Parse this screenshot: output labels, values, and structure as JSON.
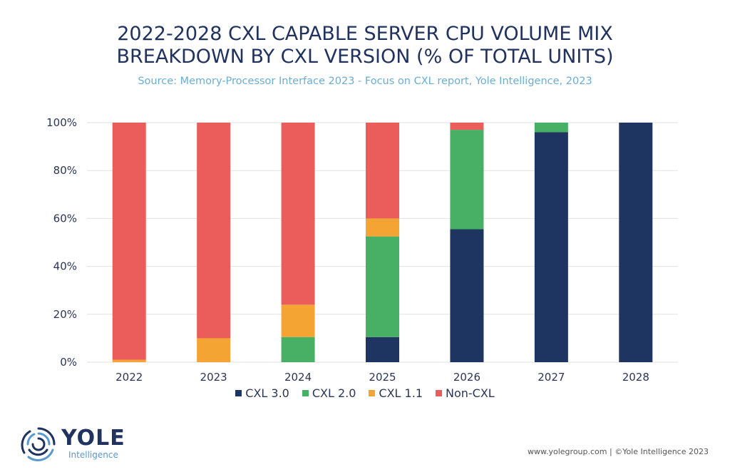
{
  "header": {
    "title_line1": "2022-2028 CXL CAPABLE SERVER CPU VOLUME MIX",
    "title_line2": "BREAKDOWN BY CXL VERSION (% OF TOTAL UNITS)",
    "subtitle": "Source: Memory-Processor Interface 2023 - Focus on CXL  report, Yole Intelligence, 2023"
  },
  "chart_data": {
    "type": "bar",
    "stacked": true,
    "title": "2022-2028 CXL CAPABLE SERVER CPU VOLUME MIX BREAKDOWN BY CXL VERSION (% OF TOTAL UNITS)",
    "xlabel": "",
    "ylabel": "",
    "categories": [
      "2022",
      "2023",
      "2024",
      "2025",
      "2026",
      "2027",
      "2028"
    ],
    "ylim": [
      0,
      100
    ],
    "yticks": [
      "0%",
      "20%",
      "40%",
      "60%",
      "80%",
      "100%"
    ],
    "grid": true,
    "legend_position": "bottom",
    "series": [
      {
        "name": "CXL 3.0",
        "color": "#1e3461",
        "values": [
          0,
          0,
          0,
          10.5,
          55.5,
          96,
          100
        ]
      },
      {
        "name": "CXL 2.0",
        "color": "#48b065",
        "values": [
          0,
          0,
          10.5,
          42,
          41.5,
          4,
          0
        ]
      },
      {
        "name": "CXL 1.1",
        "color": "#f4a433",
        "values": [
          1,
          10,
          13.5,
          7.5,
          0,
          0,
          0
        ]
      },
      {
        "name": "Non-CXL",
        "color": "#ea5d5a",
        "values": [
          99,
          90,
          76,
          40,
          3,
          0,
          0
        ]
      }
    ]
  },
  "legend": [
    {
      "label": "CXL 3.0",
      "color": "#1e3461"
    },
    {
      "label": "CXL 2.0",
      "color": "#48b065"
    },
    {
      "label": "CXL 1.1",
      "color": "#f4a433"
    },
    {
      "label": "Non-CXL",
      "color": "#ea5d5a"
    }
  ],
  "branding": {
    "logo_name": "YOLE",
    "logo_sub": "Intelligence",
    "footer": "www.yolegroup.com | ©Yole Intelligence 2023"
  }
}
